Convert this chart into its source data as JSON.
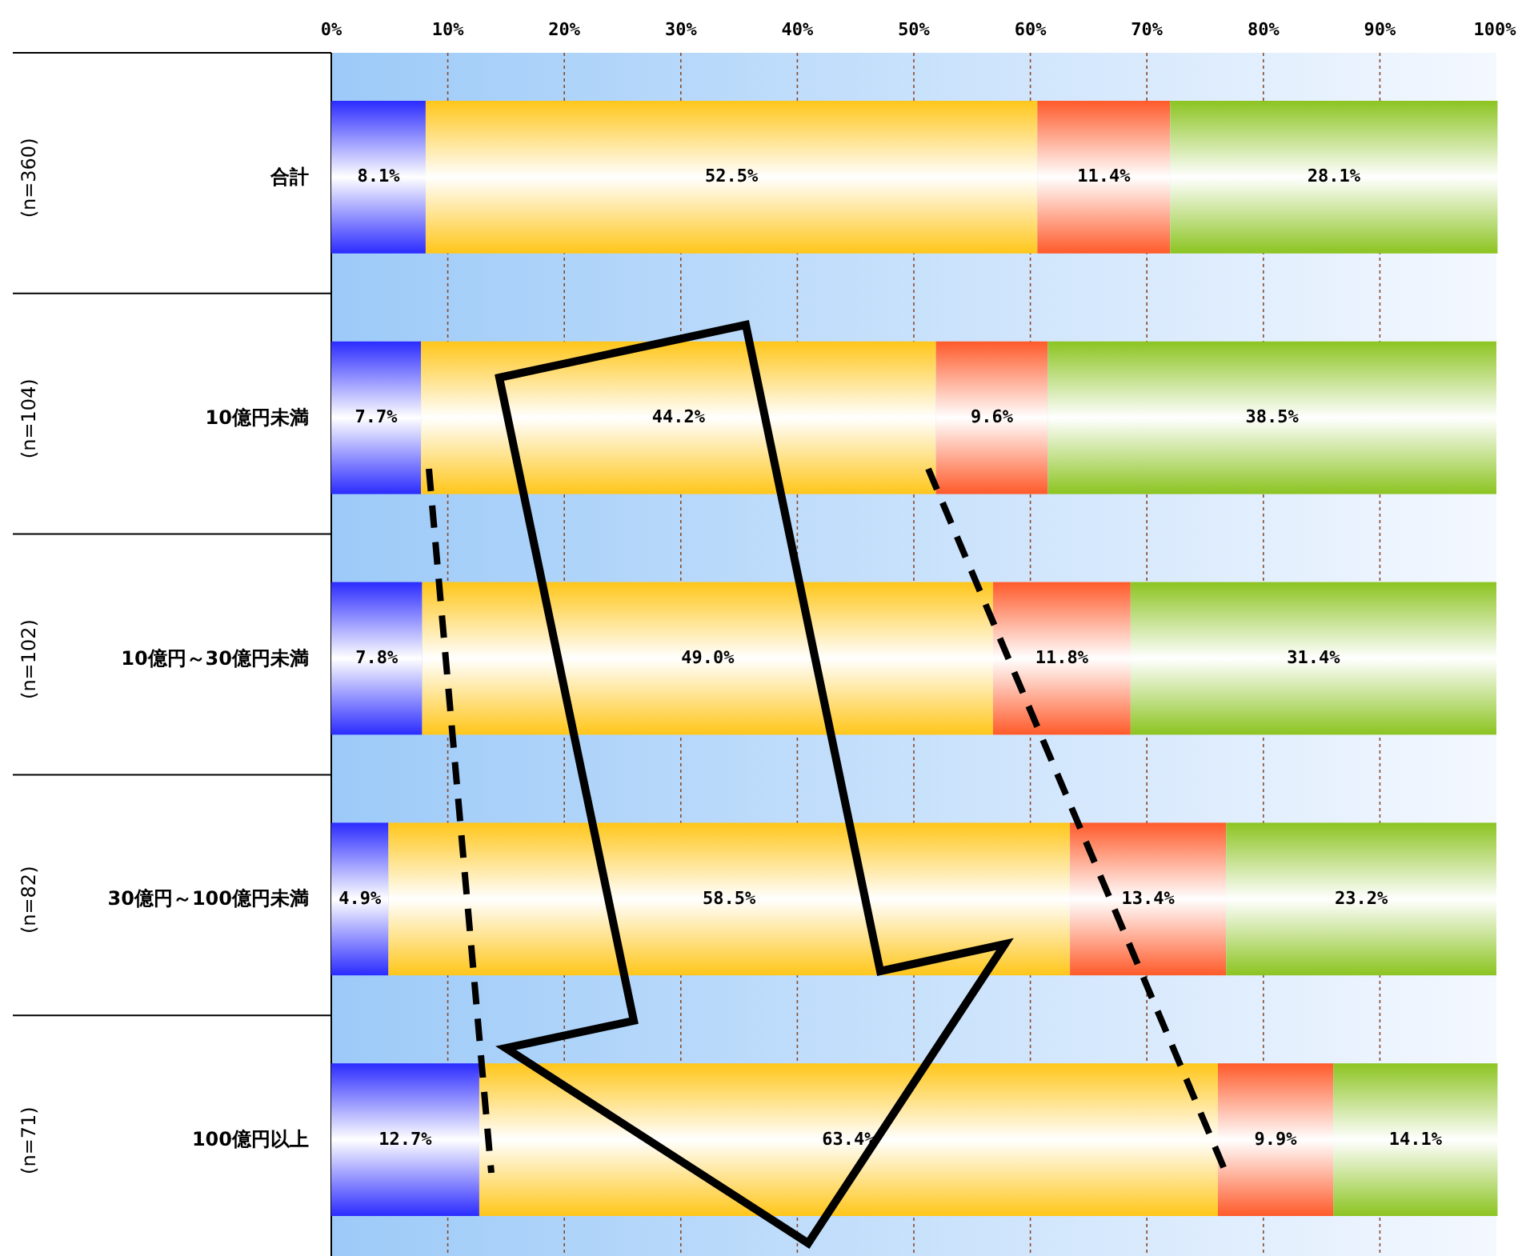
{
  "chart_data": {
    "type": "bar",
    "orientation": "horizontal",
    "stacked": true,
    "grid": "x",
    "categories": [
      "合計",
      "10億円未満",
      "10億円～30億円未満",
      "30億円～100億円未満",
      "100億円以上"
    ],
    "series": [
      {
        "color": "#2b2bff",
        "values": [
          8.1,
          7.7,
          7.8,
          4.9,
          12.7
        ],
        "value_labels": [
          "8.1%",
          "7.7%",
          "7.8%",
          "4.9%",
          "12.7%"
        ]
      },
      {
        "color": "#ffc61a",
        "values": [
          52.5,
          44.2,
          49.0,
          58.5,
          63.4
        ],
        "value_labels": [
          "52.5%",
          "44.2%",
          "49.0%",
          "58.5%",
          "63.4%"
        ]
      },
      {
        "color": "#ff5a2a",
        "values": [
          11.4,
          9.6,
          11.8,
          13.4,
          9.9
        ],
        "value_labels": [
          "11.4%",
          "9.6%",
          "11.8%",
          "13.4%",
          "9.9%"
        ]
      },
      {
        "color": "#8cc421",
        "values": [
          28.1,
          38.5,
          31.4,
          23.2,
          14.1
        ],
        "value_labels": [
          "28.1%",
          "38.5%",
          "31.4%",
          "23.2%",
          "14.1%"
        ]
      }
    ],
    "xlim": [
      0,
      100
    ],
    "xticks": [
      {
        "value": 0,
        "label": "0%"
      },
      {
        "value": 10,
        "label": "10%"
      },
      {
        "value": 20,
        "label": "20%"
      },
      {
        "value": 30,
        "label": "30%"
      },
      {
        "value": 40,
        "label": "40%"
      },
      {
        "value": 50,
        "label": "50%"
      },
      {
        "value": 60,
        "label": "60%"
      },
      {
        "value": 70,
        "label": "70%"
      },
      {
        "value": 80,
        "label": "80%"
      },
      {
        "value": 90,
        "label": "90%"
      },
      {
        "value": 100,
        "label": "100%"
      }
    ],
    "annotations": [
      "(n=360)",
      "(n=104)",
      "(n=102)",
      "(n=82)",
      "(n=71)"
    ]
  }
}
